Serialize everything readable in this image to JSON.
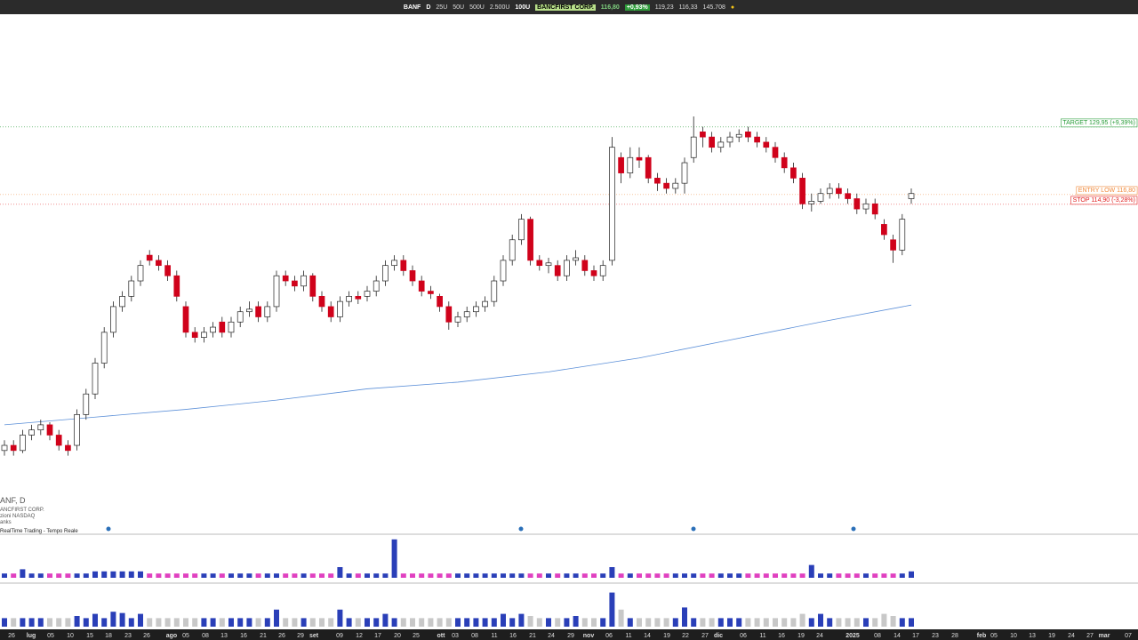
{
  "toolbar": {
    "symbol": "BANF",
    "interval": "D",
    "sizes": [
      "25U",
      "50U",
      "500U",
      "2.500U"
    ],
    "size": "100U",
    "company": "BANCFIRST CORP.",
    "price": "116,80",
    "change": "+0,93%",
    "high": "119,23",
    "low": "116,33",
    "volume": "145.708"
  },
  "info": {
    "symbol": "ANF, D",
    "company": "ANCFIRST CORP.",
    "exchange": "zioni NASDAQ",
    "sector": "anks",
    "feed": "RealTime Trading - Tempo Reale"
  },
  "chart_data": {
    "type": "candlestick",
    "ylim": [
      57.8,
      151.2
    ],
    "up_color": "#ffffff",
    "down_color": "#d0021b",
    "candles": [
      [
        67,
        69,
        66,
        68
      ],
      [
        68,
        69,
        66,
        67
      ],
      [
        67,
        71,
        66.5,
        70
      ],
      [
        70,
        72,
        69,
        71
      ],
      [
        71,
        73,
        70,
        72
      ],
      [
        72,
        72.5,
        69,
        70
      ],
      [
        70,
        71,
        67,
        68
      ],
      [
        68,
        69,
        66,
        67
      ],
      [
        68,
        75,
        67,
        74
      ],
      [
        74,
        79,
        73,
        78
      ],
      [
        78,
        85,
        77,
        84
      ],
      [
        84,
        91,
        83,
        90
      ],
      [
        90,
        96,
        89,
        95
      ],
      [
        95,
        98,
        94,
        97
      ],
      [
        97,
        101,
        96,
        100
      ],
      [
        100,
        104,
        99,
        103
      ],
      [
        105,
        106,
        103,
        104
      ],
      [
        104,
        105,
        102,
        103
      ],
      [
        103,
        104,
        100,
        101
      ],
      [
        101,
        102,
        96,
        97
      ],
      [
        95,
        96,
        89,
        90
      ],
      [
        90,
        91,
        88,
        89
      ],
      [
        89,
        91,
        88,
        90
      ],
      [
        90,
        92,
        89,
        91
      ],
      [
        92,
        93,
        89,
        90
      ],
      [
        90,
        93,
        89,
        92
      ],
      [
        92,
        95,
        91,
        94
      ],
      [
        94,
        96,
        93,
        94.5
      ],
      [
        95,
        96,
        92,
        93
      ],
      [
        93,
        96,
        92,
        95
      ],
      [
        95,
        102,
        94,
        101
      ],
      [
        101,
        102,
        99,
        100
      ],
      [
        100,
        101,
        98,
        99
      ],
      [
        99,
        102,
        98,
        101
      ],
      [
        101,
        101.5,
        96,
        97
      ],
      [
        97,
        98,
        94,
        95
      ],
      [
        95,
        96,
        92,
        93
      ],
      [
        93,
        97,
        92,
        96
      ],
      [
        96,
        98,
        95,
        97
      ],
      [
        97,
        98,
        95.5,
        96.5
      ],
      [
        97,
        99,
        96,
        98
      ],
      [
        98,
        101,
        97,
        100
      ],
      [
        100,
        104,
        99,
        103
      ],
      [
        103,
        105,
        102,
        104
      ],
      [
        104,
        105,
        101,
        102
      ],
      [
        102,
        103,
        99,
        100
      ],
      [
        100,
        101,
        97,
        98
      ],
      [
        98,
        99,
        96.5,
        97.5
      ],
      [
        97,
        97.5,
        94,
        95
      ],
      [
        95,
        96,
        90.5,
        92
      ],
      [
        92,
        94,
        91,
        93
      ],
      [
        93,
        95,
        92,
        94
      ],
      [
        94,
        96,
        93,
        95
      ],
      [
        95,
        97,
        94,
        96
      ],
      [
        96,
        101,
        95,
        100
      ],
      [
        100,
        105,
        99,
        104
      ],
      [
        104,
        109,
        103,
        108
      ],
      [
        108,
        113,
        107,
        112
      ],
      [
        112,
        112.5,
        103,
        104
      ],
      [
        104,
        105,
        102,
        103
      ],
      [
        103,
        104.5,
        101.5,
        103.5
      ],
      [
        103,
        104,
        100,
        101
      ],
      [
        101,
        105,
        100,
        104
      ],
      [
        104,
        106,
        103,
        104.5
      ],
      [
        104,
        105,
        101,
        102
      ],
      [
        102,
        103,
        100,
        101
      ],
      [
        101,
        104,
        100,
        103
      ],
      [
        104,
        128,
        103,
        126
      ],
      [
        124,
        125,
        119,
        121
      ],
      [
        121,
        126,
        120,
        124
      ],
      [
        124,
        126,
        122,
        123.5
      ],
      [
        124,
        124.5,
        119,
        120
      ],
      [
        120,
        121,
        117.5,
        119
      ],
      [
        119,
        120,
        117,
        118
      ],
      [
        118,
        120,
        117,
        119
      ],
      [
        119,
        124,
        117,
        123
      ],
      [
        124,
        132,
        123,
        128
      ],
      [
        129,
        130,
        126,
        128
      ],
      [
        128,
        129,
        125,
        126
      ],
      [
        126,
        128,
        125,
        127
      ],
      [
        127,
        129,
        126,
        128
      ],
      [
        128,
        129.5,
        127,
        128.5
      ],
      [
        129,
        130,
        127,
        128
      ],
      [
        128,
        129,
        126,
        127
      ],
      [
        127,
        128,
        125,
        126
      ],
      [
        126,
        127,
        123,
        124
      ],
      [
        124,
        125,
        121,
        122
      ],
      [
        122,
        123,
        119,
        120
      ],
      [
        120,
        121,
        114,
        115
      ],
      [
        115,
        117,
        113.5,
        115.5
      ],
      [
        115.5,
        118,
        115,
        117
      ],
      [
        117,
        119,
        116,
        118
      ],
      [
        118,
        119,
        116,
        117
      ],
      [
        117,
        118,
        115,
        116
      ],
      [
        116,
        117,
        113,
        114
      ],
      [
        114,
        116,
        113,
        115
      ],
      [
        115,
        116,
        112,
        113
      ],
      [
        111,
        112,
        108,
        109
      ],
      [
        108,
        109,
        103.5,
        106
      ],
      [
        106,
        113,
        105,
        112
      ],
      [
        116,
        118,
        115,
        117
      ]
    ],
    "ma": {
      "color": "#5b8fd8",
      "x": [
        0,
        10,
        20,
        30,
        40,
        50,
        60,
        70,
        80,
        90,
        100
      ],
      "values": [
        72.0,
        73.5,
        75.0,
        76.8,
        79.0,
        80.3,
        82.3,
        85.0,
        88.5,
        92.0,
        95.3
      ]
    },
    "levels": [
      {
        "label": "TARGET 129,95 (+9,39%)",
        "value": 129.95,
        "color": "#2a9d3a"
      },
      {
        "label": "ENTRY LOW 116,80",
        "value": 116.8,
        "color": "#f08a3c"
      },
      {
        "label": "STOP 114,90 (-3,28%)",
        "value": 114.9,
        "color": "#e02020"
      }
    ],
    "vlim": [
      0,
      10
    ],
    "volume_up_color": "#2a3fb8",
    "volume_down_color": "#e040c0",
    "volume2_down_color": "#c8c8c8",
    "volume": [
      1,
      1,
      2,
      1,
      1,
      1,
      1,
      1,
      1,
      1,
      1.5,
      1.5,
      1.5,
      1.5,
      1.5,
      1.5,
      1,
      1,
      1,
      1,
      1,
      1,
      1,
      1,
      1,
      1,
      1,
      1,
      1,
      1,
      1,
      1,
      1,
      1,
      1,
      1,
      1,
      2.5,
      1,
      1,
      1,
      1,
      1,
      9,
      1,
      1,
      1,
      1,
      1,
      1,
      1,
      1,
      1,
      1,
      1,
      1,
      1,
      1,
      1,
      1,
      1,
      1,
      1,
      1,
      1,
      1,
      1,
      2.5,
      1,
      1,
      1,
      1,
      1,
      1,
      1,
      1,
      1,
      1,
      1,
      1,
      1,
      1,
      1,
      1,
      1,
      1,
      1,
      1,
      1,
      3,
      1,
      1,
      1,
      1,
      1,
      1,
      1,
      1,
      1,
      1,
      1.5
    ],
    "volume2": [
      2,
      2,
      2,
      2,
      2,
      2,
      2,
      2,
      2.5,
      2,
      3,
      2,
      3.5,
      3.2,
      2,
      3,
      2,
      2,
      2,
      2,
      2,
      2,
      2,
      2,
      2,
      2,
      2,
      2,
      2,
      2,
      4,
      2,
      2,
      2,
      2,
      2,
      2,
      4,
      2,
      2,
      2,
      2,
      3,
      2,
      2,
      2,
      2,
      2,
      2,
      2,
      2,
      2,
      2,
      2,
      2,
      3,
      2,
      3,
      2.5,
      2,
      2,
      2,
      2,
      2.5,
      2,
      2,
      2,
      8,
      4,
      2,
      2,
      2,
      2,
      2,
      2,
      4.5,
      2,
      2,
      2,
      2,
      2,
      2,
      2,
      2,
      2,
      2,
      2,
      2,
      3,
      2,
      3,
      2,
      2,
      2,
      2,
      2,
      2,
      3,
      2.5,
      2,
      2
    ],
    "x_labels": [
      "26",
      "lug",
      "05",
      "10",
      "15",
      "18",
      "23",
      "26",
      "ago",
      "05",
      "08",
      "13",
      "16",
      "21",
      "26",
      "29",
      "set",
      "09",
      "12",
      "17",
      "20",
      "25",
      "ott",
      "03",
      "08",
      "11",
      "16",
      "21",
      "24",
      "29",
      "nov",
      "06",
      "11",
      "14",
      "19",
      "22",
      "27",
      "dic",
      "06",
      "11",
      "16",
      "19",
      "24",
      "2025",
      "08",
      "14",
      "17",
      "23",
      "28",
      "feb",
      "05",
      "10",
      "13",
      "19",
      "24",
      "27",
      "mar",
      "07"
    ]
  }
}
